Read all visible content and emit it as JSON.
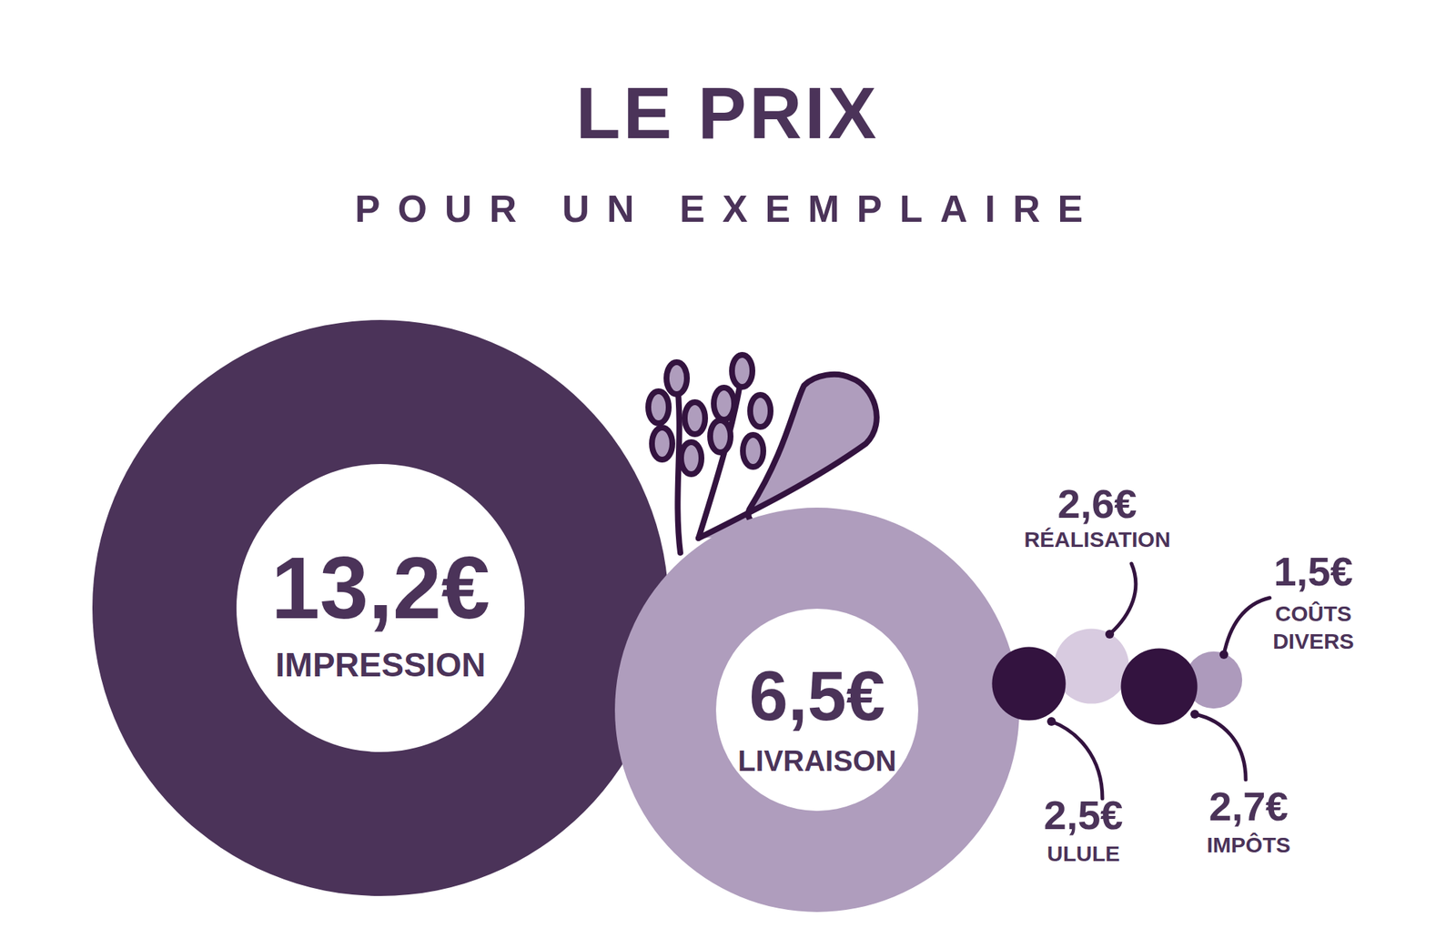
{
  "chart_data": {
    "type": "bubble",
    "title": "LE PRIX",
    "subtitle": "POUR UN EXEMPLAIRE",
    "categories": [
      "IMPRESSION",
      "LIVRAISON",
      "RÉALISATION",
      "ULULE",
      "IMPÔTS",
      "COÛTS DIVERS"
    ],
    "values": [
      13.2,
      6.5,
      2.6,
      2.5,
      2.7,
      1.5
    ],
    "value_labels": [
      "13,2€",
      "6,5€",
      "2,6€",
      "2,5€",
      "2,7€",
      "1,5€"
    ],
    "colors": [
      "#4b3359",
      "#af9dbd",
      "#d8cbe0",
      "#33133f",
      "#33133f",
      "#ad9abc"
    ],
    "data_labels": true
  }
}
